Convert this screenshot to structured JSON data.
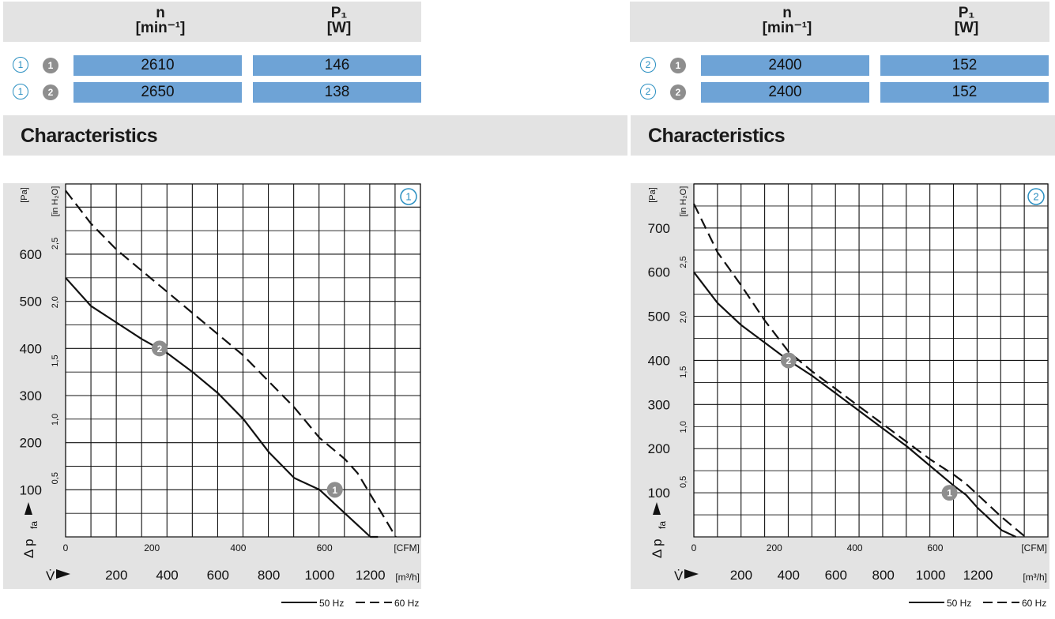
{
  "colors": {
    "bar": "#6ea3d6",
    "header_bg": "#e3e3e3",
    "accent_circle": "#2a8fc1",
    "marker_grey": "#8e8e8e"
  },
  "panels": [
    {
      "id": "1",
      "header": {
        "col1_line1": "n",
        "col1_line2": "[min⁻¹]",
        "col2_line1": "P₁",
        "col2_line2": "[W]"
      },
      "rows": [
        {
          "curve": "1",
          "point": "1",
          "n": "2610",
          "p": "146"
        },
        {
          "curve": "1",
          "point": "2",
          "n": "2650",
          "p": "138"
        }
      ],
      "characteristics_title": "Characteristics"
    },
    {
      "id": "2",
      "header": {
        "col1_line1": "n",
        "col1_line2": "[min⁻¹]",
        "col2_line1": "P₁",
        "col2_line2": "[W]"
      },
      "rows": [
        {
          "curve": "2",
          "point": "1",
          "n": "2400",
          "p": "152"
        },
        {
          "curve": "2",
          "point": "2",
          "n": "2400",
          "p": "152"
        }
      ],
      "characteristics_title": "Characteristics"
    }
  ],
  "chart_data": [
    {
      "type": "line",
      "curve_label": "1",
      "ylabel_pa_unit": "[Pa]",
      "ylabel_inh2o_unit": "[in H₂O]",
      "ylabel": "Δ p",
      "ylabel_sub": "fa",
      "xlabel": "V̇",
      "x_unit_cfm": "[CFM]",
      "x_unit_m3h": "[m³/h]",
      "pa_ticks": [
        100,
        200,
        300,
        400,
        500,
        600
      ],
      "inh2o_ticks": [
        "0,5",
        "1,0",
        "1,5",
        "2,0",
        "2,5"
      ],
      "cfm_ticks": [
        0,
        200,
        400,
        600
      ],
      "m3h_ticks": [
        200,
        400,
        600,
        800,
        1000,
        1200
      ],
      "xlim_m3h": [
        0,
        1400
      ],
      "ylim_pa": [
        0,
        750
      ],
      "series": [
        {
          "name": "50 Hz",
          "style": "solid",
          "x": [
            0,
            100,
            200,
            300,
            400,
            500,
            600,
            700,
            800,
            900,
            1000,
            1100,
            1150,
            1200,
            1230
          ],
          "y": [
            550,
            490,
            455,
            420,
            390,
            350,
            305,
            250,
            180,
            125,
            100,
            50,
            25,
            0,
            0
          ]
        },
        {
          "name": "60 Hz",
          "style": "dashed",
          "x": [
            0,
            100,
            200,
            300,
            400,
            500,
            600,
            700,
            800,
            900,
            1000,
            1100,
            1150,
            1200,
            1250,
            1300
          ],
          "y": [
            735,
            665,
            610,
            565,
            520,
            475,
            430,
            385,
            330,
            275,
            210,
            165,
            135,
            90,
            45,
            0
          ]
        }
      ],
      "markers": [
        {
          "label": "2",
          "x": 370,
          "y": 400
        },
        {
          "label": "1",
          "x": 1060,
          "y": 100
        }
      ],
      "legend": [
        "50 Hz",
        "60 Hz"
      ]
    },
    {
      "type": "line",
      "curve_label": "2",
      "ylabel_pa_unit": "[Pa]",
      "ylabel_inh2o_unit": "[in H₂O]",
      "ylabel": "Δ p",
      "ylabel_sub": "fa",
      "xlabel": "V̇",
      "x_unit_cfm": "[CFM]",
      "x_unit_m3h": "[m³/h]",
      "pa_ticks": [
        100,
        200,
        300,
        400,
        500,
        600,
        700
      ],
      "inh2o_ticks": [
        "0,5",
        "1,0",
        "1,5",
        "2,0",
        "2,5"
      ],
      "cfm_ticks": [
        0,
        200,
        400,
        600
      ],
      "m3h_ticks": [
        200,
        400,
        600,
        800,
        1000,
        1200
      ],
      "xlim_m3h": [
        0,
        1400
      ],
      "ylim_pa": [
        0,
        800
      ],
      "series": [
        {
          "name": "50 Hz",
          "style": "solid",
          "x": [
            0,
            100,
            200,
            300,
            400,
            500,
            600,
            700,
            800,
            900,
            1000,
            1100,
            1150,
            1200,
            1300,
            1360
          ],
          "y": [
            600,
            530,
            480,
            440,
            400,
            365,
            325,
            285,
            245,
            205,
            160,
            115,
            95,
            65,
            15,
            0
          ]
        },
        {
          "name": "60 Hz",
          "style": "dashed",
          "x": [
            0,
            100,
            200,
            300,
            400,
            500,
            600,
            700,
            800,
            900,
            1000,
            1100,
            1150,
            1200,
            1300,
            1400
          ],
          "y": [
            755,
            645,
            570,
            490,
            420,
            375,
            335,
            295,
            255,
            215,
            175,
            140,
            120,
            95,
            45,
            0
          ]
        }
      ],
      "markers": [
        {
          "label": "2",
          "x": 400,
          "y": 400
        },
        {
          "label": "1",
          "x": 1080,
          "y": 100
        }
      ],
      "legend": [
        "50 Hz",
        "60 Hz"
      ]
    }
  ]
}
